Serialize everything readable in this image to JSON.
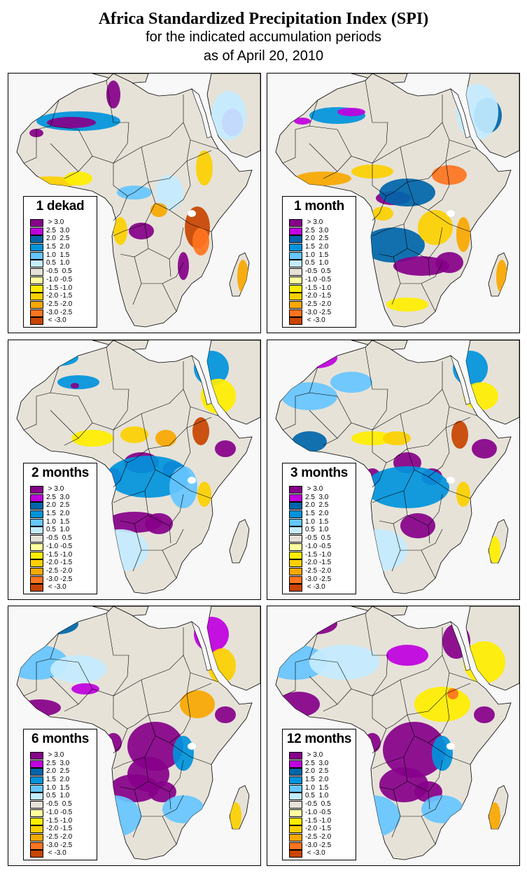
{
  "header": {
    "title": "Africa Standardized Precipitation Index (SPI)",
    "subtitle": "for the indicated accumulation periods",
    "date_line": "as of April 20, 2010"
  },
  "legend": {
    "classes": [
      {
        "label": " > 3.0",
        "color": "#87008a",
        "min": 3.0,
        "max": null
      },
      {
        "label": "2.5  3.0",
        "color": "#c000e0",
        "min": 2.5,
        "max": 3.0
      },
      {
        "label": "2.0  2.5",
        "color": "#0066aa",
        "min": 2.0,
        "max": 2.5
      },
      {
        "label": "1.5  2.0",
        "color": "#0094dc",
        "min": 1.5,
        "max": 2.0
      },
      {
        "label": "1.0  1.5",
        "color": "#66c6ff",
        "min": 1.0,
        "max": 1.5
      },
      {
        "label": "0.5  1.0",
        "color": "#c4ecff",
        "min": 0.5,
        "max": 1.0
      },
      {
        "label": "-0.5  0.5",
        "color": "#e6e2d8",
        "min": -0.5,
        "max": 0.5
      },
      {
        "label": "-1.0 -0.5",
        "color": "#ffffa0",
        "min": -1.0,
        "max": -0.5
      },
      {
        "label": "-1.5 -1.0",
        "color": "#ffee00",
        "min": -1.5,
        "max": -1.0
      },
      {
        "label": "-2.0 -1.5",
        "color": "#fcd000",
        "min": -2.0,
        "max": -1.5
      },
      {
        "label": "-2.5 -2.0",
        "color": "#f8a800",
        "min": -2.5,
        "max": -2.0
      },
      {
        "label": "-3.0 -2.5",
        "color": "#ff7420",
        "min": -3.0,
        "max": -2.5
      },
      {
        "label": " < -3.0",
        "color": "#c84400",
        "min": null,
        "max": -3.0
      }
    ]
  },
  "colors": {
    "land_neutral": "#e6e2d8",
    "ocean": "#f8f8f8",
    "border": "#000000"
  },
  "panels": [
    {
      "period": "1 dekad",
      "dominant_anomalies": [
        {
          "region": "Algeria / Mali Sahara",
          "class": 0
        },
        {
          "region": "Northern Algeria",
          "class": 3
        },
        {
          "region": "Saudi Arabia",
          "class": 1
        },
        {
          "region": "Tanzania / Mozambique",
          "class": 12
        },
        {
          "region": "Central DRC",
          "class": 10
        },
        {
          "region": "Gulf of Guinea coast",
          "class": 9
        },
        {
          "region": "Ethiopia",
          "class": 9
        },
        {
          "region": "Madagascar",
          "class": 10
        },
        {
          "region": "Angola / Zambia",
          "class": 0
        }
      ]
    },
    {
      "period": "1 month",
      "dominant_anomalies": [
        {
          "region": "Algeria Sahara",
          "class": 3
        },
        {
          "region": "Ghana / Nigeria",
          "class": 10
        },
        {
          "region": "Sudan / South Sudan",
          "class": 11
        },
        {
          "region": "Central Africa",
          "class": 0
        },
        {
          "region": "Zambia / Zimbabwe / Mozambique",
          "class": 0
        },
        {
          "region": "Tanzania",
          "class": 10
        },
        {
          "region": "Angola",
          "class": 2
        },
        {
          "region": "Madagascar",
          "class": 10
        }
      ]
    },
    {
      "period": "2 months",
      "dominant_anomalies": [
        {
          "region": "Northern Algeria / Morocco",
          "class": 3
        },
        {
          "region": "Gabon",
          "class": 0
        },
        {
          "region": "Central DRC",
          "class": 0
        },
        {
          "region": "Angola / Zambia",
          "class": 0
        },
        {
          "region": "Somalia / Ethiopia",
          "class": 0
        },
        {
          "region": "South Sudan",
          "class": 11
        },
        {
          "region": "Northern Nigeria / Chad",
          "class": 9
        }
      ]
    },
    {
      "period": "3 months",
      "dominant_anomalies": [
        {
          "region": "Morocco / Algeria coast",
          "class": 1
        },
        {
          "region": "Gabon",
          "class": 0
        },
        {
          "region": "Central DRC",
          "class": 0
        },
        {
          "region": "Zambia",
          "class": 0
        },
        {
          "region": "Somalia / Ethiopia",
          "class": 0
        },
        {
          "region": "South Sudan / Ethiopia border",
          "class": 11
        },
        {
          "region": "Tanzania",
          "class": 9
        }
      ]
    },
    {
      "period": "6 months",
      "dominant_anomalies": [
        {
          "region": "Guinea / Sierra Leone",
          "class": 0
        },
        {
          "region": "Gabon",
          "class": 0
        },
        {
          "region": "DRC",
          "class": 0
        },
        {
          "region": "Angola / Zambia",
          "class": 0
        },
        {
          "region": "Ethiopia",
          "class": 10
        },
        {
          "region": "Madagascar",
          "class": 9
        },
        {
          "region": "Mali / Mauritania",
          "class": 4
        }
      ]
    },
    {
      "period": "12 months",
      "dominant_anomalies": [
        {
          "region": "Guinea / Sierra Leone",
          "class": 0
        },
        {
          "region": "Gabon",
          "class": 0
        },
        {
          "region": "DRC",
          "class": 0
        },
        {
          "region": "Angola / Zambia",
          "class": 0
        },
        {
          "region": "Sudan / Ethiopia",
          "class": 8
        },
        {
          "region": "Saudi Arabia",
          "class": 8
        },
        {
          "region": "Madagascar",
          "class": 10
        }
      ]
    }
  ]
}
